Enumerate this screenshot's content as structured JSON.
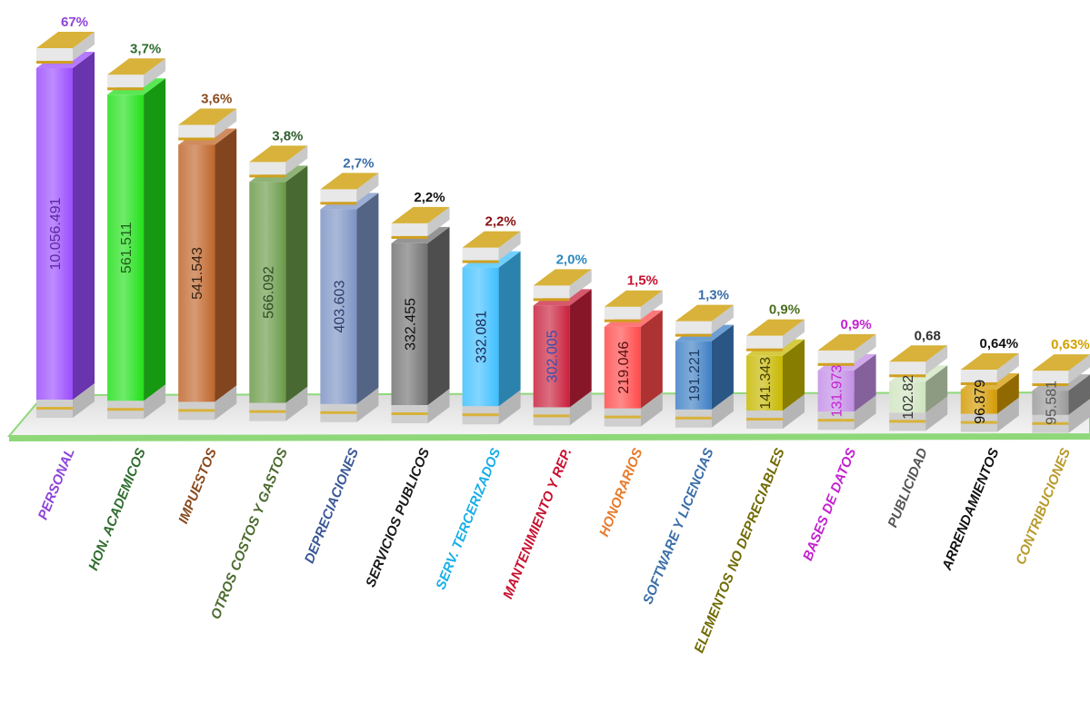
{
  "chart_data": {
    "type": "bar",
    "title": "",
    "xlabel": "",
    "ylabel": "",
    "categories": [
      "PERSONAL",
      "HON. ACADEMICOS",
      "IMPUESTOS",
      "OTROS COSTOS Y GASTOS",
      "DEPRECIACIONES",
      "SERVICIOS PUBLICOS",
      "SERV. TERCERIZADOS",
      "MANTENIMIENTO Y REP.",
      "HONORARIOS",
      "SOFTWARE Y LICENCIAS",
      "ELEMENTOS NO DEPRECIABLES",
      "BASES DE DATOS",
      "PUBLICIDAD",
      "ARRENDAMIENTOS",
      "CONTRIBUCIONES"
    ],
    "value_labels": [
      "10.056.491",
      "561.511",
      "541.543",
      "566.092",
      "403.603",
      "332.455",
      "332.081",
      "302.005",
      "219.046",
      "191.221",
      "141.343",
      "131.973",
      "102.82",
      "96.879",
      "95.581"
    ],
    "percent_labels": [
      "67%",
      "3,7%",
      "3,6%",
      "3,8%",
      "2,7%",
      "2,2%",
      "2,2%",
      "2,0%",
      "1,5%",
      "1,3%",
      "0,9%",
      "0,9%",
      "0,68",
      "0,64%",
      "0,63%"
    ],
    "bar_levels": [
      1.0,
      0.92,
      0.77,
      0.66,
      0.58,
      0.48,
      0.41,
      0.3,
      0.24,
      0.2,
      0.16,
      0.12,
      0.09,
      0.07,
      0.07
    ],
    "colors": {
      "bars": [
        "#9b4dff",
        "#22e01a",
        "#c0652a",
        "#6a9a48",
        "#7c93c4",
        "#727272",
        "#3fbfff",
        "#c8203c",
        "#ff4a4a",
        "#3d7fc4",
        "#c7b800",
        "#c38ee6",
        "#cfe4bf",
        "#d49a00",
        "#9a9a9a"
      ],
      "labels": [
        "#8e44d8",
        "#2f6d2f",
        "#8a4a1e",
        "#4b6b2e",
        "#3a5796",
        "#1a1a1a",
        "#19aee8",
        "#c8102e",
        "#e87a2a",
        "#3a6ea8",
        "#6f6a00",
        "#c322d0",
        "#555555",
        "#111111",
        "#b89a2a"
      ],
      "value_text": [
        "#5b2aa0",
        "#1d5e1a",
        "#3a2312",
        "#2c4d23",
        "#2c3e6c",
        "#111111",
        "#1a2a5a",
        "#3a4db0",
        "#5a1010",
        "#1e3b63",
        "#444000",
        "#c322d0",
        "#333333",
        "#111111",
        "#555555"
      ],
      "percent_text": [
        "#8e44d8",
        "#2f6d2f",
        "#8a4a1e",
        "#2f5e2f",
        "#3a6ea8",
        "#111111",
        "#8a1010",
        "#2a8ac0",
        "#c8102e",
        "#3a6ea8",
        "#4a6e20",
        "#c322d0",
        "#333333",
        "#111111",
        "#d4a000"
      ],
      "cap_top": "#d8b23a",
      "cap_side": "#e8e8e8",
      "platform": "#8fd87a"
    }
  }
}
